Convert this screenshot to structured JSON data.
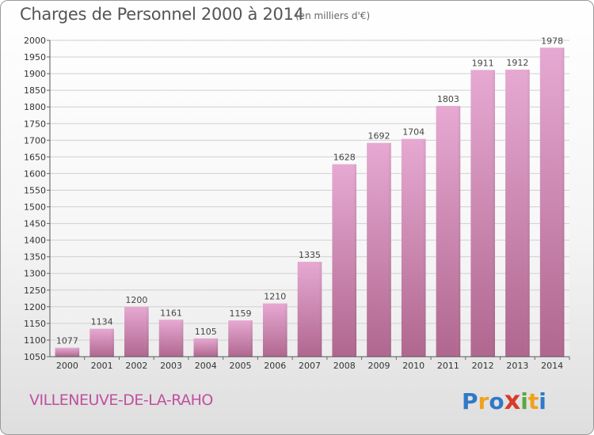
{
  "title": "Charges de Personnel 2000 à 2014",
  "subtitle": "(en milliers d'€)",
  "commune": "VILLENEUVE-DE-LA-RAHO",
  "logo": [
    "P",
    "r",
    "o",
    "x",
    "i",
    "t",
    "i"
  ],
  "logo_colors": [
    "#2f79c8",
    "#f0a21b",
    "#2f79c8",
    "#d93b2a",
    "#5aa83c",
    "#f0a21b",
    "#2f79c8"
  ],
  "colors": {
    "bar": "#d98ec0",
    "bar_dark": "#b46598",
    "title": "#555555",
    "commune": "#c0509e",
    "grid": "#d0d0d0"
  },
  "chart_data": {
    "type": "bar",
    "title": "Charges de Personnel 2000 à 2014",
    "subtitle": "(en milliers d'€)",
    "categories": [
      "2000",
      "2001",
      "2002",
      "2003",
      "2004",
      "2005",
      "2006",
      "2007",
      "2008",
      "2009",
      "2010",
      "2011",
      "2012",
      "2013",
      "2014"
    ],
    "values": [
      1077,
      1134,
      1200,
      1161,
      1105,
      1159,
      1210,
      1335,
      1628,
      1692,
      1704,
      1803,
      1911,
      1912,
      1978
    ],
    "ylim": [
      1050,
      2000
    ],
    "yticks": [
      1050,
      1100,
      1150,
      1200,
      1250,
      1300,
      1350,
      1400,
      1450,
      1500,
      1550,
      1600,
      1650,
      1700,
      1750,
      1800,
      1850,
      1900,
      1950,
      2000
    ],
    "grid": true,
    "legend": "none"
  }
}
